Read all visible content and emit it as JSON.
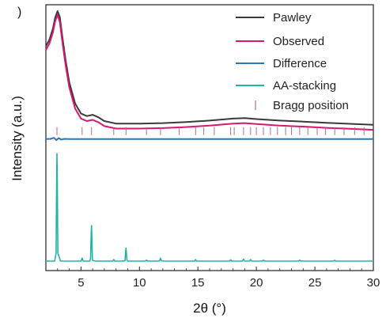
{
  "panel_letter": ")",
  "chart_data": {
    "type": "line",
    "xlabel": "2θ (°)",
    "ylabel": "Intensity (a.u.)",
    "xlim": [
      2,
      30
    ],
    "ylim": [
      0,
      1
    ],
    "x_ticks": [
      5,
      10,
      15,
      20,
      25,
      30
    ],
    "y_ticks_shown": false,
    "legend_position": "top-right",
    "series": [
      {
        "name": "Pawley",
        "color": "#3a3a3a",
        "x": [
          2.0,
          2.3,
          2.6,
          2.8,
          3.0,
          3.2,
          3.4,
          3.7,
          4.0,
          4.5,
          5.0,
          5.5,
          6.0,
          6.5,
          7.0,
          8.0,
          9.0,
          10.0,
          12.0,
          14.0,
          16.0,
          18.0,
          19.0,
          20.0,
          22.0,
          24.0,
          26.0,
          28.0,
          30.0
        ],
        "y": [
          0.86,
          0.885,
          0.93,
          0.975,
          1.0,
          0.975,
          0.9,
          0.8,
          0.715,
          0.63,
          0.59,
          0.58,
          0.585,
          0.575,
          0.56,
          0.55,
          0.55,
          0.55,
          0.552,
          0.556,
          0.562,
          0.57,
          0.572,
          0.568,
          0.562,
          0.558,
          0.553,
          0.549,
          0.545
        ]
      },
      {
        "name": "Observed",
        "color": "#d6186f",
        "x": [
          2.0,
          2.3,
          2.6,
          2.8,
          3.0,
          3.2,
          3.4,
          3.7,
          4.0,
          4.5,
          5.0,
          5.5,
          6.0,
          6.5,
          7.0,
          8.0,
          9.0,
          10.0,
          12.0,
          14.0,
          16.0,
          18.0,
          19.0,
          20.0,
          22.0,
          24.0,
          26.0,
          28.0,
          30.0
        ],
        "y": [
          0.845,
          0.87,
          0.915,
          0.96,
          0.985,
          0.955,
          0.88,
          0.78,
          0.695,
          0.61,
          0.57,
          0.56,
          0.565,
          0.555,
          0.54,
          0.53,
          0.53,
          0.53,
          0.532,
          0.536,
          0.542,
          0.55,
          0.552,
          0.548,
          0.542,
          0.538,
          0.533,
          0.529,
          0.525
        ]
      },
      {
        "name": "Difference",
        "color": "#2a78b8",
        "x": [
          2.0,
          2.4,
          2.7,
          2.9,
          3.1,
          3.3,
          3.6,
          4.0,
          5.0,
          8.0,
          12.0,
          16.0,
          20.0,
          25.0,
          30.0
        ],
        "y": [
          0.488,
          0.489,
          0.493,
          0.484,
          0.492,
          0.486,
          0.489,
          0.488,
          0.488,
          0.488,
          0.488,
          0.488,
          0.488,
          0.488,
          0.488
        ]
      },
      {
        "name": "AA-stacking",
        "color": "#1fb5a6",
        "baseline": 0.0,
        "peaks": [
          {
            "x": 2.95,
            "height": 0.43
          },
          {
            "x": 5.1,
            "height": 0.012
          },
          {
            "x": 5.9,
            "height": 0.142
          },
          {
            "x": 7.8,
            "height": 0.006
          },
          {
            "x": 8.85,
            "height": 0.052
          },
          {
            "x": 10.6,
            "height": 0.004
          },
          {
            "x": 11.8,
            "height": 0.012
          },
          {
            "x": 14.8,
            "height": 0.006
          },
          {
            "x": 17.8,
            "height": 0.005
          },
          {
            "x": 18.9,
            "height": 0.008
          },
          {
            "x": 19.5,
            "height": 0.006
          },
          {
            "x": 20.6,
            "height": 0.004
          },
          {
            "x": 23.7,
            "height": 0.004
          },
          {
            "x": 26.7,
            "height": 0.003
          }
        ]
      },
      {
        "name": "Bragg position",
        "color": "#b06a8a",
        "type": "ticks",
        "y": 0.52,
        "x": [
          2.95,
          5.1,
          5.9,
          7.8,
          8.85,
          10.6,
          11.8,
          13.4,
          14.8,
          15.5,
          16.4,
          17.8,
          18.1,
          18.9,
          19.5,
          20.0,
          20.6,
          21.2,
          21.8,
          22.5,
          23.0,
          23.7,
          24.4,
          25.2,
          25.9,
          26.7,
          27.5,
          28.4,
          29.2
        ]
      }
    ]
  }
}
